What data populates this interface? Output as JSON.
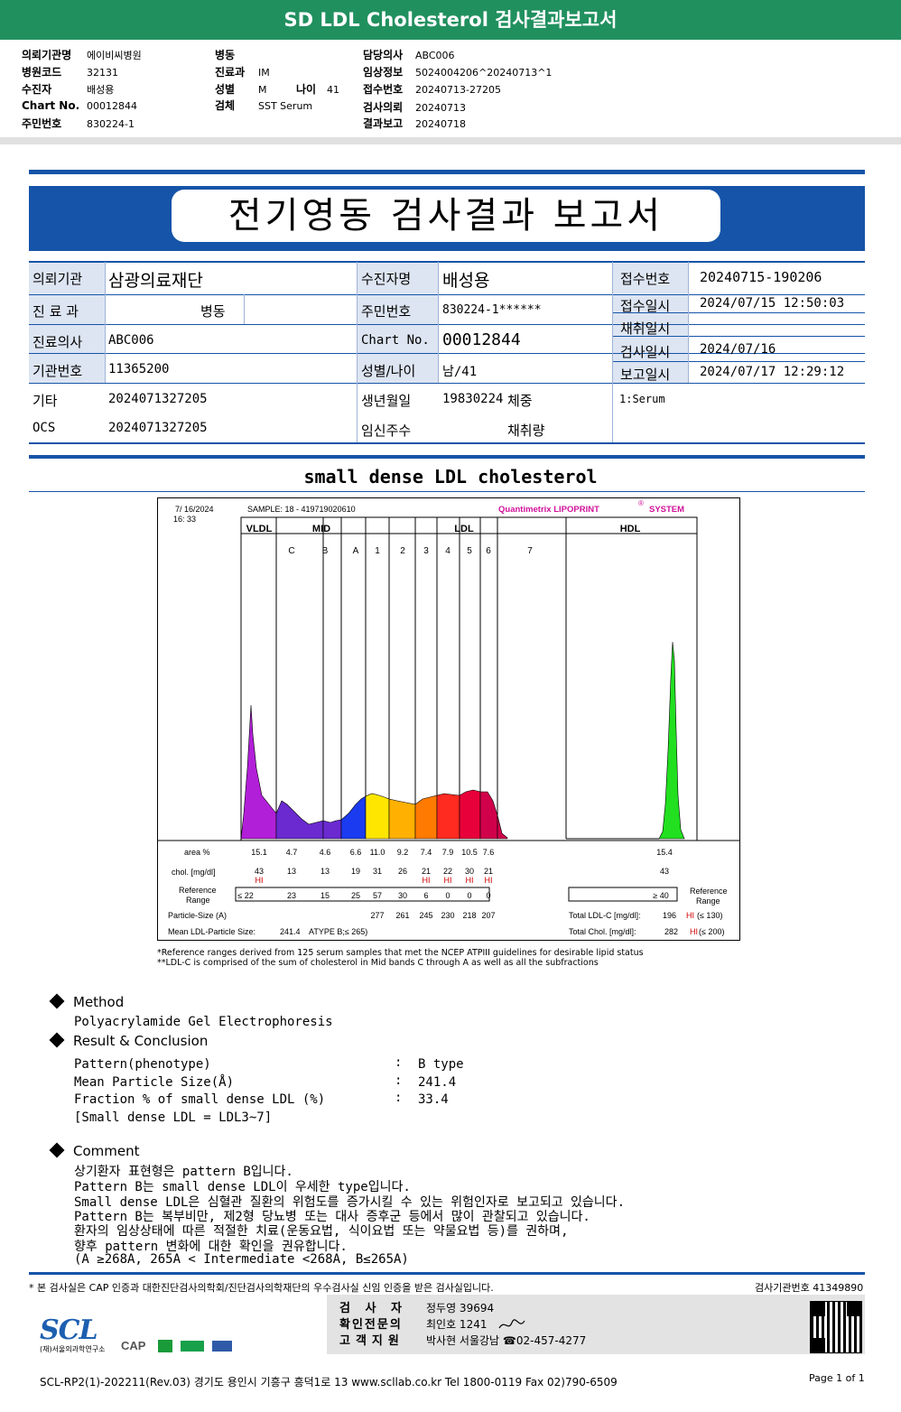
{
  "header": {
    "title": "SD LDL Cholesterol 검사결과보고서",
    "col1": [
      {
        "label": "의뢰기관명",
        "value": "에이비씨병원"
      },
      {
        "label": "병원코드",
        "value": "32131"
      },
      {
        "label": "수진자",
        "value": "배성용"
      },
      {
        "label": "Chart No.",
        "value": "00012844"
      },
      {
        "label": "주민번호",
        "value": "830224-1"
      }
    ],
    "col2": [
      {
        "label": "병동",
        "value": ""
      },
      {
        "label": "진료과",
        "value": "IM"
      },
      {
        "label": "성별",
        "value": "M"
      },
      {
        "label": "검체",
        "value": "SST Serum"
      }
    ],
    "age_label": "나이",
    "age_value": "41",
    "col3": [
      {
        "label": "담당의사",
        "value": "ABC006"
      },
      {
        "label": "임상정보",
        "value": "5024004206^20240713^1"
      },
      {
        "label": "접수번호",
        "value": "20240713-27205"
      },
      {
        "label": "검사의뢰",
        "value": "20240713"
      },
      {
        "label": "결과보고",
        "value": "20240718"
      }
    ]
  },
  "report": {
    "title": "전기영동 검사결과 보고서",
    "institution_label": "의뢰기관",
    "institution": "삼광의료재단",
    "dept_label": "진 료 과",
    "dept": "병동",
    "doctor_label": "진료의사",
    "doctor": "ABC006",
    "org_no_label": "기관번호",
    "org_no": "11365200",
    "etc_label": "기타",
    "etc": "2024071327205",
    "ocs_label": "OCS",
    "ocs": "2024071327205",
    "patient_label": "수진자명",
    "patient": "배성용",
    "ssn_label": "주민번호",
    "ssn": "830224-1******",
    "chart_label": "Chart No.",
    "chart_no": "00012844",
    "sexage_label": "성별/나이",
    "sexage": "남/41",
    "birth_label": "생년월일",
    "birth": "19830224",
    "weight_label": "체중",
    "preg_label": "임신주수",
    "collect_amount_label": "채취량",
    "receipt_no_label": "접수번호",
    "receipt_no": "20240715-190206",
    "receipt_time_label": "접수일시",
    "receipt_time": "2024/07/15 12:50:03",
    "collect_time_label": "채취일시",
    "collect_time": "",
    "test_date_label": "검사일시",
    "test_date": "2024/07/16",
    "report_time_label": "보고일시",
    "report_time": "2024/07/17 12:29:12",
    "specimen": "1:Serum"
  },
  "chart_data": {
    "type": "area",
    "title": "small dense LDL cholesterol",
    "run_date": "7/ 16/2024",
    "run_time": "16: 33",
    "sample": "SAMPLE:   18 - 419719020610",
    "brand": "Quantimetrix LIPOPRINT",
    "brand_mark": "®",
    "brand_suffix": "SYSTEM",
    "group_labels": [
      "VLDL",
      "MID",
      "LDL",
      "HDL"
    ],
    "band_labels": [
      "C",
      "B",
      "A",
      "1",
      "2",
      "3",
      "4",
      "5",
      "6",
      "7"
    ],
    "area_label": "area %",
    "chol_label": "chol. [mg/dl]",
    "ref_label": [
      "Reference",
      "Range"
    ],
    "particle_label": "Particle-Size (A)",
    "mean_label": "Mean LDL-Particle Size:",
    "fractions": [
      {
        "name": "VLDL",
        "area": "15.1",
        "chol": "43",
        "flag": "HI",
        "ref": "≤ 22",
        "size": ""
      },
      {
        "name": "C",
        "area": "4.7",
        "chol": "13",
        "flag": "",
        "ref": "23",
        "size": ""
      },
      {
        "name": "B",
        "area": "4.6",
        "chol": "13",
        "flag": "",
        "ref": "15",
        "size": ""
      },
      {
        "name": "A",
        "area": "6.6",
        "chol": "19",
        "flag": "",
        "ref": "25",
        "size": ""
      },
      {
        "name": "1",
        "area": "11.0",
        "chol": "31",
        "flag": "",
        "ref": "57",
        "size": "277"
      },
      {
        "name": "2",
        "area": "9.2",
        "chol": "26",
        "flag": "",
        "ref": "30",
        "size": "261"
      },
      {
        "name": "3",
        "area": "7.4",
        "chol": "21",
        "flag": "HI",
        "ref": "6",
        "size": "245"
      },
      {
        "name": "4",
        "area": "7.9",
        "chol": "22",
        "flag": "HI",
        "ref": "0",
        "size": "230"
      },
      {
        "name": "5",
        "area": "10.5",
        "chol": "30",
        "flag": "HI",
        "ref": "0",
        "size": "218"
      },
      {
        "name": "6",
        "area": "7.6",
        "chol": "21",
        "flag": "HI",
        "ref": "0",
        "size": "207"
      },
      {
        "name": "HDL",
        "area": "15.4",
        "chol": "43",
        "flag": "",
        "ref": "≥  40",
        "size": ""
      }
    ],
    "mean_particle_size": "241.4",
    "atype_text": "ATYPE B;≤ 265)",
    "ref_right": [
      "Reference",
      "Range"
    ],
    "total_ldl_label": "Total LDL-C  [mg/dl]:",
    "total_ldl": "196",
    "total_ldl_flag": "HI",
    "total_ldl_ref": "(≤ 130)",
    "total_chol_label": "Total Chol.  [mg/dl]:",
    "total_chol": "282",
    "total_chol_flag": "HI",
    "total_chol_ref": "(≤ 200)",
    "colors": {
      "VLDL": "#b21fd8",
      "MID": "#6a2ad0",
      "A": "#1a3bf0",
      "1": "#ffe600",
      "2": "#ffb000",
      "3": "#ff7a00",
      "4": "#ff2a20",
      "5": "#e8003a",
      "6": "#d0004a",
      "HDL": "#22e020"
    },
    "notes": [
      "*Reference ranges derived from 125 serum samples that met the NCEP ATPIII guidelines for desirable lipid status",
      "**LDL-C is comprised of the sum of cholesterol in Mid bands C through A as well as all the subfractions"
    ]
  },
  "method": {
    "heading": "Method",
    "text": "Polyacrylamide Gel Electrophoresis"
  },
  "result": {
    "heading": "Result & Conclusion",
    "rows": [
      {
        "label": "Pattern(phenotype)",
        "value": "B type"
      },
      {
        "label": "Mean Particle Size(Å)",
        "value": "241.4"
      },
      {
        "label": "Fraction % of small dense LDL (%)",
        "value": "33.4"
      }
    ],
    "sep": ":",
    "note": "[Small dense LDL = LDL3~7]"
  },
  "comment": {
    "heading": "Comment",
    "lines": [
      "상기환자 표현형은 pattern B입니다.",
      "Pattern B는 small dense LDL이 우세한 type입니다.",
      "Small dense LDL은 심혈관 질환의 위험도를 증가시킬 수 있는 위험인자로 보고되고 있습니다.",
      "Pattern B는 복부비만, 제2형 당뇨병 또는 대사 증후군 등에서 많이 관찰되고 있습니다.",
      "환자의 임상상태에 따른 적절한 치료(운동요법, 식이요법 또는 약물요법 등)를 권하며,",
      "향후 pattern 변화에 대한 확인을 권유합니다.",
      "(A ≥268A, 265A < Intermediate <268A, B≤265A)"
    ]
  },
  "footer": {
    "cert_note": "* 본 검사실은 CAP 인증과 대한진단검사의학회/진단검사의학재단의 우수검사실 신임 인증을 받은 검사실입니다.",
    "lab_no": "검사기관번호  41349890",
    "tester_label": "검 사 자",
    "tester": "정두영 39694",
    "confirm_label": "확인전문의",
    "confirm": "최인호 1241",
    "support_label": "고객지원",
    "support": "박사현 서울강남 ☎02-457-4277",
    "logo": "SCL",
    "logo_sub": "(재)서울의과학연구소",
    "cert_logo": "CAP",
    "address": "SCL-RP2(1)-202211(Rev.03)  경기도 용인시 기흥구 흥덕1로 13  www.scllab.co.kr   Tel 1800-0119    Fax 02)790-6509",
    "page": "Page 1 of 1"
  }
}
